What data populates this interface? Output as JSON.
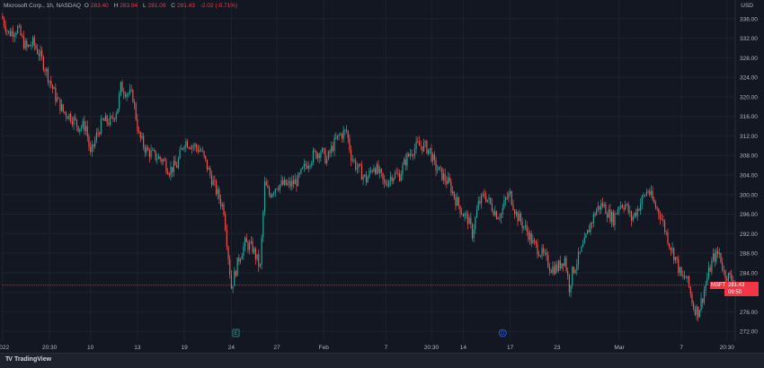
{
  "legend": {
    "symbol": "Microsoft Corp., 1h, NASDAQ",
    "open_label": "O",
    "open": "283.40",
    "high_label": "H",
    "high": "283.94",
    "low_label": "L",
    "low": "281.09",
    "close_label": "C",
    "close": "281.43",
    "change": "-2.02 (-0.71%)"
  },
  "currency": "USD",
  "last_price": {
    "symbol": "MSFT",
    "price": "281.43",
    "countdown": "09:50"
  },
  "footer": {
    "brand": "TradingView",
    "logo": "TV"
  },
  "colors": {
    "background": "#131722",
    "up": "#26a69a",
    "down": "#ef5350",
    "grid": "#1e222d",
    "event_earnings": "#26a69a",
    "event_dividend": "#2962ff"
  },
  "events": [
    {
      "label": "E",
      "index": 154,
      "type": "earnings"
    },
    {
      "label": "D",
      "index": 330,
      "type": "dividend"
    }
  ],
  "chart_data": {
    "type": "candlestick",
    "ylim": [
      270,
      338
    ],
    "y_ticks": [
      "336.00",
      "332.00",
      "328.00",
      "324.00",
      "320.00",
      "316.00",
      "312.00",
      "308.00",
      "304.00",
      "300.00",
      "296.00",
      "292.00",
      "288.00",
      "284.00",
      "280.00",
      "276.00",
      "272.00"
    ],
    "x_ticks": [
      {
        "label": "2022",
        "index": 0
      },
      {
        "label": "20:30",
        "index": 31
      },
      {
        "label": "10",
        "index": 58
      },
      {
        "label": "13",
        "index": 89
      },
      {
        "label": "19",
        "index": 120
      },
      {
        "label": "24",
        "index": 151
      },
      {
        "label": "27",
        "index": 181
      },
      {
        "label": "Feb",
        "index": 212
      },
      {
        "label": "7",
        "index": 253
      },
      {
        "label": "20:30",
        "index": 283
      },
      {
        "label": "14",
        "index": 304
      },
      {
        "label": "17",
        "index": 335
      },
      {
        "label": "23",
        "index": 366
      },
      {
        "label": "Mar",
        "index": 407
      },
      {
        "label": "7",
        "index": 448
      },
      {
        "label": "20:30",
        "index": 478
      }
    ],
    "anchors": [
      [
        0,
        336
      ],
      [
        4,
        333
      ],
      [
        10,
        334
      ],
      [
        14,
        331
      ],
      [
        16,
        330
      ],
      [
        20,
        331
      ],
      [
        24,
        329
      ],
      [
        28,
        326
      ],
      [
        35,
        320
      ],
      [
        40,
        317
      ],
      [
        45,
        316
      ],
      [
        50,
        314
      ],
      [
        55,
        314
      ],
      [
        58,
        308
      ],
      [
        62,
        312
      ],
      [
        66,
        315
      ],
      [
        70,
        315
      ],
      [
        72,
        315
      ],
      [
        76,
        318
      ],
      [
        78,
        322
      ],
      [
        82,
        321
      ],
      [
        86,
        320
      ],
      [
        90,
        312
      ],
      [
        95,
        309
      ],
      [
        100,
        308
      ],
      [
        106,
        307
      ],
      [
        110,
        305
      ],
      [
        115,
        306
      ],
      [
        120,
        311
      ],
      [
        126,
        310
      ],
      [
        131,
        309
      ],
      [
        137,
        304
      ],
      [
        142,
        300
      ],
      [
        146,
        297
      ],
      [
        151,
        281
      ],
      [
        156,
        287
      ],
      [
        160,
        290
      ],
      [
        165,
        289
      ],
      [
        170,
        285
      ],
      [
        173,
        302
      ],
      [
        176,
        300
      ],
      [
        181,
        302
      ],
      [
        190,
        302
      ],
      [
        195,
        303
      ],
      [
        200,
        306
      ],
      [
        205,
        308
      ],
      [
        210,
        309
      ],
      [
        214,
        307
      ],
      [
        218,
        310
      ],
      [
        222,
        312
      ],
      [
        227,
        313
      ],
      [
        230,
        308
      ],
      [
        233,
        306
      ],
      [
        240,
        303
      ],
      [
        245,
        306
      ],
      [
        249,
        304
      ],
      [
        252,
        302
      ],
      [
        257,
        304
      ],
      [
        262,
        304
      ],
      [
        266,
        307
      ],
      [
        270,
        309
      ],
      [
        274,
        310
      ],
      [
        278,
        310
      ],
      [
        282,
        309
      ],
      [
        285,
        306
      ],
      [
        290,
        304
      ],
      [
        295,
        302
      ],
      [
        299,
        299
      ],
      [
        304,
        296
      ],
      [
        307,
        295
      ],
      [
        310,
        292
      ],
      [
        314,
        298
      ],
      [
        318,
        300
      ],
      [
        322,
        298
      ],
      [
        326,
        296
      ],
      [
        329,
        296
      ],
      [
        332,
        299
      ],
      [
        335,
        300
      ],
      [
        339,
        296
      ],
      [
        343,
        294
      ],
      [
        347,
        292
      ],
      [
        350,
        290
      ],
      [
        353,
        289
      ],
      [
        358,
        287
      ],
      [
        362,
        285
      ],
      [
        366,
        285
      ],
      [
        371,
        287
      ],
      [
        374,
        281
      ],
      [
        376,
        284
      ],
      [
        380,
        287
      ],
      [
        384,
        290
      ],
      [
        388,
        294
      ],
      [
        392,
        297
      ],
      [
        396,
        298
      ],
      [
        400,
        296
      ],
      [
        403,
        295
      ],
      [
        407,
        298
      ],
      [
        411,
        298
      ],
      [
        415,
        295
      ],
      [
        419,
        297
      ],
      [
        422,
        299
      ],
      [
        426,
        301
      ],
      [
        430,
        298
      ],
      [
        434,
        296
      ],
      [
        437,
        293
      ],
      [
        440,
        290
      ],
      [
        444,
        287
      ],
      [
        448,
        283
      ],
      [
        451,
        283
      ],
      [
        453,
        281
      ],
      [
        456,
        277
      ],
      [
        459,
        276
      ],
      [
        462,
        279
      ],
      [
        465,
        283
      ],
      [
        469,
        287
      ],
      [
        473,
        288
      ],
      [
        476,
        284
      ],
      [
        480,
        283
      ],
      [
        483,
        282
      ]
    ],
    "candle_count": 484
  }
}
